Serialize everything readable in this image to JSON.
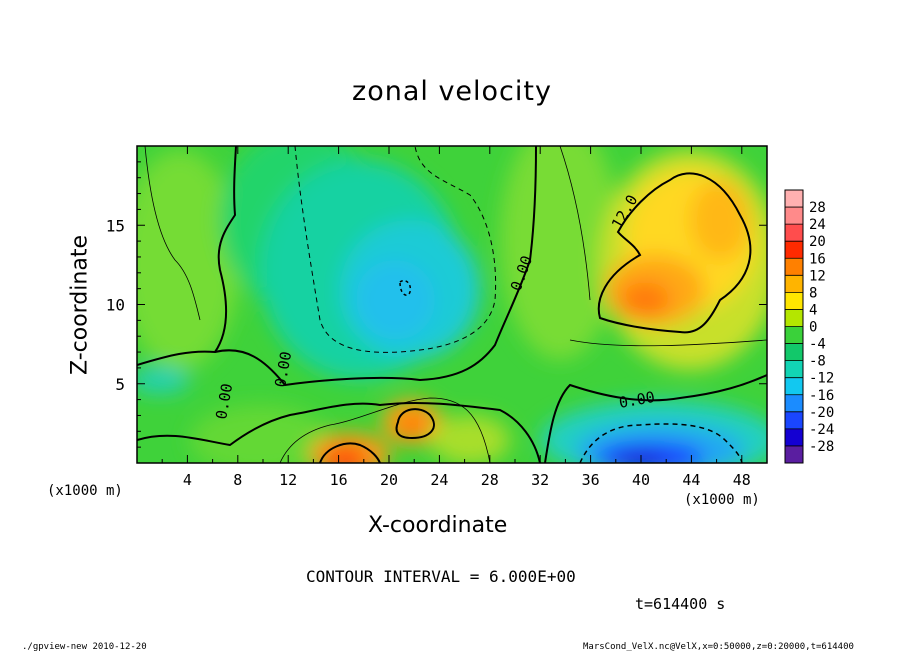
{
  "title": "zonal velocity",
  "chart_data": {
    "type": "heatmap",
    "title": "zonal velocity",
    "xlabel": "X-coordinate",
    "ylabel": "Z-coordinate",
    "x_unit_label": "(x1000 m)",
    "xlim": [
      0,
      50
    ],
    "ylim": [
      0,
      20
    ],
    "x_ticks": [
      "4",
      "8",
      "12",
      "16",
      "20",
      "24",
      "28",
      "32",
      "36",
      "40",
      "44",
      "48"
    ],
    "y_ticks": [
      "5",
      "10",
      "15"
    ],
    "colorbar_labels": [
      "28",
      "24",
      "20",
      "16",
      "12",
      "8",
      "4",
      "0",
      "-4",
      "-8",
      "-12",
      "-16",
      "-20",
      "-24",
      "-28"
    ],
    "colorbar_colors": [
      "#ff8a8a",
      "#ff4d4d",
      "#ff2a00",
      "#ff8000",
      "#ffb400",
      "#ffe600",
      "#b4e600",
      "#3ad13a",
      "#12c86a",
      "#12d4b4",
      "#12c8f0",
      "#1b8cff",
      "#1a46ff",
      "#1400d2",
      "#5a1ea0"
    ],
    "contour_interval": 6,
    "contour_labels": [
      "0.00",
      "12.0"
    ],
    "features": [
      {
        "name": "positive core upper right",
        "x": 41,
        "z": 10.5,
        "value": 16
      },
      {
        "name": "positive core near surface",
        "x": 17.5,
        "z": 0.5,
        "value": 16
      },
      {
        "name": "positive core low",
        "x": 22,
        "z": 2.5,
        "value": 14
      },
      {
        "name": "negative core near surface",
        "x": 42,
        "z": 1,
        "value": -22
      },
      {
        "name": "negative core mid",
        "x": 21.5,
        "z": 11,
        "value": -11
      }
    ]
  },
  "contour_text": "CONTOUR INTERVAL = 6.000E+00",
  "time_text": "t=614400 s",
  "footer_left": "./gpview-new  2010-12-20",
  "footer_right": "MarsCond_VelX.nc@VelX,x=0:50000,z=0:20000,t=614400"
}
